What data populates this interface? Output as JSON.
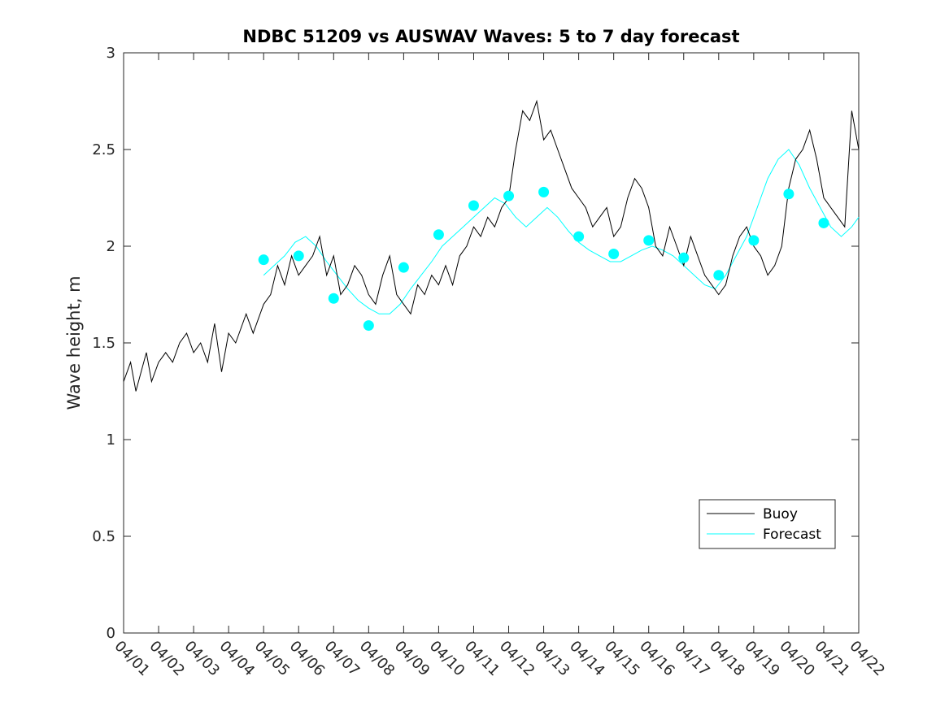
{
  "chart_data": {
    "type": "line",
    "title": "NDBC 51209 vs AUSWAV Waves: 5 to 7 day forecast",
    "xlabel": "",
    "ylabel": "Wave height, m",
    "xlim": [
      0,
      21
    ],
    "ylim": [
      0,
      3
    ],
    "yticks": [
      0,
      0.5,
      1,
      1.5,
      2,
      2.5,
      3
    ],
    "ytick_labels": [
      "0",
      "0.5",
      "1",
      "1.5",
      "2",
      "2.5",
      "3"
    ],
    "xtick_labels": [
      "04/01",
      "04/02",
      "04/03",
      "04/04",
      "04/05",
      "04/06",
      "04/07",
      "04/08",
      "04/09",
      "04/10",
      "04/11",
      "04/12",
      "04/13",
      "04/14",
      "04/15",
      "04/16",
      "04/17",
      "04/18",
      "04/19",
      "04/20",
      "04/21",
      "04/22"
    ],
    "grid": false,
    "legend": {
      "location": "bottom-right",
      "entries": [
        "Buoy",
        "Forecast"
      ]
    },
    "colors": {
      "buoy": "#000000",
      "forecast": "#00ffff",
      "axes": "#262626"
    },
    "series": [
      {
        "name": "Buoy",
        "x": [
          0.0,
          0.2,
          0.35,
          0.5,
          0.65,
          0.8,
          1.0,
          1.2,
          1.4,
          1.6,
          1.8,
          2.0,
          2.2,
          2.4,
          2.6,
          2.8,
          3.0,
          3.2,
          3.5,
          3.7,
          4.0,
          4.2,
          4.4,
          4.6,
          4.8,
          5.0,
          5.2,
          5.4,
          5.6,
          5.8,
          6.0,
          6.2,
          6.4,
          6.6,
          6.8,
          7.0,
          7.2,
          7.4,
          7.6,
          7.8,
          8.0,
          8.2,
          8.4,
          8.6,
          8.8,
          9.0,
          9.2,
          9.4,
          9.6,
          9.8,
          10.0,
          10.2,
          10.4,
          10.6,
          10.8,
          11.0,
          11.2,
          11.4,
          11.6,
          11.8,
          12.0,
          12.2,
          12.4,
          12.6,
          12.8,
          13.0,
          13.2,
          13.4,
          13.6,
          13.8,
          14.0,
          14.2,
          14.4,
          14.6,
          14.8,
          15.0,
          15.2,
          15.4,
          15.6,
          15.8,
          16.0,
          16.2,
          16.4,
          16.6,
          16.8,
          17.0,
          17.2,
          17.4,
          17.6,
          17.8,
          18.0,
          18.2,
          18.4,
          18.6,
          18.8,
          19.0,
          19.2,
          19.4,
          19.6,
          19.8,
          20.0,
          20.2,
          20.4,
          20.6,
          20.8,
          21.0
        ],
        "y": [
          1.3,
          1.4,
          1.25,
          1.35,
          1.45,
          1.3,
          1.4,
          1.45,
          1.4,
          1.5,
          1.55,
          1.45,
          1.5,
          1.4,
          1.6,
          1.35,
          1.55,
          1.5,
          1.65,
          1.55,
          1.7,
          1.75,
          1.9,
          1.8,
          1.95,
          1.85,
          1.9,
          1.95,
          2.05,
          1.85,
          1.95,
          1.75,
          1.8,
          1.9,
          1.85,
          1.75,
          1.7,
          1.85,
          1.95,
          1.75,
          1.7,
          1.65,
          1.8,
          1.75,
          1.85,
          1.8,
          1.9,
          1.8,
          1.95,
          2.0,
          2.1,
          2.05,
          2.15,
          2.1,
          2.2,
          2.25,
          2.5,
          2.7,
          2.65,
          2.75,
          2.55,
          2.6,
          2.5,
          2.4,
          2.3,
          2.25,
          2.2,
          2.1,
          2.15,
          2.2,
          2.05,
          2.1,
          2.25,
          2.35,
          2.3,
          2.2,
          2.0,
          1.95,
          2.1,
          2.0,
          1.9,
          2.05,
          1.95,
          1.85,
          1.8,
          1.75,
          1.8,
          1.95,
          2.05,
          2.1,
          2.0,
          1.95,
          1.85,
          1.9,
          2.0,
          2.3,
          2.45,
          2.5,
          2.6,
          2.45,
          2.25,
          2.2,
          2.15,
          2.1,
          2.7,
          2.5
        ]
      },
      {
        "name": "Forecast",
        "x": [
          4.0,
          4.3,
          4.6,
          4.9,
          5.2,
          5.5,
          5.8,
          6.1,
          6.4,
          6.7,
          7.0,
          7.3,
          7.6,
          7.9,
          8.2,
          8.5,
          8.8,
          9.1,
          9.4,
          9.7,
          10.0,
          10.3,
          10.6,
          10.9,
          11.2,
          11.5,
          11.8,
          12.1,
          12.4,
          12.7,
          13.0,
          13.3,
          13.6,
          13.9,
          14.2,
          14.5,
          14.8,
          15.1,
          15.4,
          15.7,
          16.0,
          16.3,
          16.6,
          16.9,
          17.2,
          17.5,
          17.8,
          18.1,
          18.4,
          18.7,
          19.0,
          19.3,
          19.6,
          19.9,
          20.2,
          20.5,
          20.8,
          21.0
        ],
        "y": [
          1.85,
          1.9,
          1.95,
          2.02,
          2.05,
          2.0,
          1.92,
          1.85,
          1.78,
          1.72,
          1.68,
          1.65,
          1.65,
          1.7,
          1.78,
          1.85,
          1.92,
          2.0,
          2.05,
          2.1,
          2.15,
          2.2,
          2.25,
          2.22,
          2.15,
          2.1,
          2.15,
          2.2,
          2.15,
          2.08,
          2.02,
          1.98,
          1.95,
          1.92,
          1.92,
          1.95,
          1.98,
          2.0,
          1.98,
          1.95,
          1.9,
          1.85,
          1.8,
          1.78,
          1.85,
          1.95,
          2.05,
          2.2,
          2.35,
          2.45,
          2.5,
          2.42,
          2.3,
          2.2,
          2.1,
          2.05,
          2.1,
          2.15
        ]
      },
      {
        "name": "Forecast markers",
        "x": [
          4.0,
          5.0,
          6.0,
          7.0,
          8.0,
          9.0,
          10.0,
          11.0,
          12.0,
          13.0,
          14.0,
          15.0,
          16.0,
          17.0,
          18.0,
          19.0,
          20.0
        ],
        "y": [
          1.93,
          1.95,
          1.73,
          1.59,
          1.89,
          2.06,
          2.21,
          2.26,
          2.28,
          2.05,
          1.96,
          2.03,
          1.94,
          1.85,
          2.03,
          2.27,
          2.12
        ]
      }
    ]
  }
}
